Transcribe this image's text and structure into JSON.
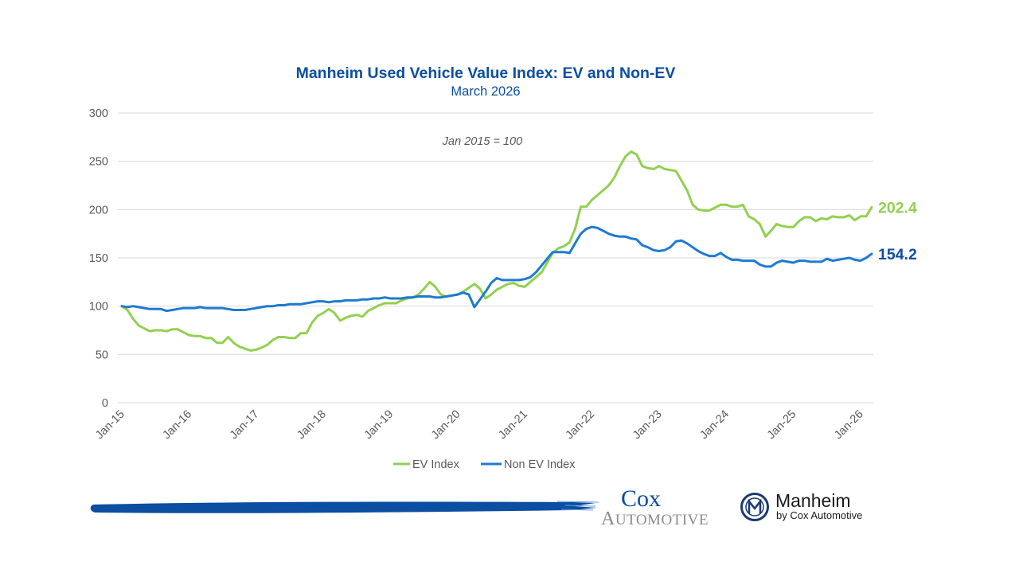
{
  "chart_data": {
    "type": "line",
    "title": "Manheim Used Vehicle Value Index: EV and Non-EV",
    "subtitle": "March 2026",
    "annotation": "Jan 2015 = 100",
    "xlabel": "",
    "ylabel": "",
    "ylim": [
      0,
      300
    ],
    "yticks": [
      0,
      50,
      100,
      150,
      200,
      250,
      300
    ],
    "x_start": "Jan 2015",
    "x_end": "Mar 2026",
    "x_frequency": "monthly",
    "xtick_labels": [
      "Jan-15",
      "Jan-16",
      "Jan-17",
      "Jan-18",
      "Jan-19",
      "Jan-20",
      "Jan-21",
      "Jan-22",
      "Jan-23",
      "Jan-24",
      "Jan-25",
      "Jan-26"
    ],
    "grid": true,
    "legend_position": "bottom",
    "series": [
      {
        "name": "EV Index",
        "color": "#92d050",
        "end_label": "202.4",
        "values": [
          100,
          96,
          87,
          80,
          77,
          74,
          75,
          75,
          74,
          76,
          76,
          73,
          70,
          69,
          69,
          67,
          67,
          62,
          62,
          68,
          62,
          58,
          56,
          54,
          55,
          57,
          60,
          65,
          68,
          68,
          67,
          67,
          72,
          72,
          83,
          90,
          93,
          97,
          93,
          85,
          88,
          90,
          91,
          89,
          95,
          98,
          101,
          103,
          103,
          103,
          106,
          108,
          109,
          112,
          118,
          125,
          120,
          112,
          110,
          111,
          112,
          115,
          119,
          123,
          118,
          108,
          112,
          117,
          120,
          123,
          124,
          121,
          120,
          125,
          130,
          135,
          145,
          155,
          160,
          162,
          166,
          180,
          203,
          203,
          210,
          215,
          220,
          225,
          233,
          245,
          255,
          260,
          257,
          245,
          243,
          242,
          245,
          242,
          241,
          240,
          230,
          220,
          205,
          200,
          199,
          199,
          202,
          205,
          205,
          203,
          203,
          205,
          193,
          190,
          185,
          172,
          178,
          185,
          183,
          182,
          182,
          188,
          192,
          192,
          188,
          191,
          190,
          193,
          192,
          192,
          194,
          189,
          193,
          193,
          202.4
        ]
      },
      {
        "name": "Non EV Index",
        "color": "#1f7ad1",
        "end_label": "154.2",
        "label_color": "#0b4ea2",
        "values": [
          100,
          99,
          100,
          99,
          98,
          97,
          97,
          97,
          95,
          96,
          97,
          98,
          98,
          98,
          99,
          98,
          98,
          98,
          98,
          97,
          96,
          96,
          96,
          97,
          98,
          99,
          100,
          100,
          101,
          101,
          102,
          102,
          102,
          103,
          104,
          105,
          105,
          104,
          105,
          105,
          106,
          106,
          106,
          107,
          107,
          108,
          108,
          109,
          108,
          108,
          108,
          109,
          109,
          110,
          110,
          110,
          109,
          109,
          110,
          111,
          112,
          114,
          112,
          99,
          107,
          115,
          124,
          129,
          127,
          127,
          127,
          127,
          128,
          130,
          135,
          142,
          149,
          156,
          156,
          156,
          155,
          165,
          175,
          180,
          182,
          181,
          178,
          175,
          173,
          172,
          172,
          170,
          169,
          163,
          161,
          158,
          157,
          158,
          161,
          167,
          168,
          165,
          161,
          157,
          154,
          152,
          152,
          155,
          151,
          148,
          148,
          147,
          147,
          147,
          143,
          141,
          141,
          145,
          147,
          146,
          145,
          147,
          147,
          146,
          146,
          146,
          149,
          147,
          148,
          149,
          150,
          148,
          147,
          150,
          154.2
        ]
      }
    ]
  },
  "footer": {
    "cox_logo": {
      "line1": "Cox",
      "line2": "Automotive"
    },
    "manheim_logo": {
      "name": "Manheim",
      "tagline": "by Cox Automotive",
      "icon": "manheim-m-emblem-icon"
    }
  }
}
